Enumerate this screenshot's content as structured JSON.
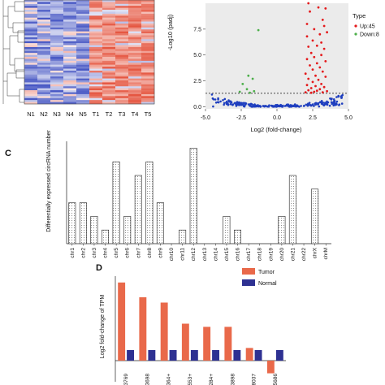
{
  "chart_data": [
    {
      "type": "heatmap",
      "x_labels": [
        "N1",
        "N2",
        "N3",
        "N4",
        "N5",
        "T1",
        "T2",
        "T3",
        "T4",
        "T5"
      ],
      "row_count": 53,
      "colors": {
        "low": "#3b4cc0",
        "mid": "#ffffff",
        "high": "#e34a33"
      }
    },
    {
      "type": "scatter",
      "xlabel": "Log2 (fold-change)",
      "ylabel": "-Log10 (padj)",
      "xlim": [
        -5,
        5
      ],
      "ylim": [
        -0.2,
        10
      ],
      "xticks": [
        "-5.0",
        "-2.5",
        "0.0",
        "2.5",
        "5.0"
      ],
      "yticks": [
        "0.0",
        "2.5",
        "5.0",
        "7.5"
      ],
      "threshold_y": 1.3,
      "legend_title": "Type",
      "series": [
        {
          "name": "Up:45",
          "color": "#e41a1c",
          "points": [
            [
              2.2,
              10.0
            ],
            [
              2.9,
              9.6
            ],
            [
              3.4,
              9.5
            ],
            [
              2.3,
              9.2
            ],
            [
              3.2,
              8.4
            ],
            [
              2.1,
              8.0
            ],
            [
              3.3,
              7.8
            ],
            [
              2.6,
              7.5
            ],
            [
              3.5,
              7.2
            ],
            [
              3.0,
              7.0
            ],
            [
              2.1,
              6.8
            ],
            [
              2.5,
              6.4
            ],
            [
              3.1,
              6.2
            ],
            [
              2.8,
              5.9
            ],
            [
              2.2,
              5.8
            ],
            [
              3.3,
              5.6
            ],
            [
              2.4,
              5.2
            ],
            [
              3.1,
              5.0
            ],
            [
              2.6,
              4.8
            ],
            [
              2.1,
              4.6
            ],
            [
              3.4,
              4.4
            ],
            [
              2.8,
              4.2
            ],
            [
              2.3,
              4.0
            ],
            [
              3.0,
              3.8
            ],
            [
              2.5,
              3.6
            ],
            [
              3.2,
              3.4
            ],
            [
              2.0,
              3.2
            ],
            [
              2.7,
              3.0
            ],
            [
              3.4,
              2.9
            ],
            [
              2.2,
              2.7
            ],
            [
              2.9,
              2.6
            ],
            [
              2.5,
              2.4
            ],
            [
              3.1,
              2.2
            ],
            [
              2.1,
              2.1
            ],
            [
              2.7,
              2.0
            ],
            [
              3.3,
              1.9
            ],
            [
              2.4,
              1.8
            ],
            [
              3.0,
              1.7
            ],
            [
              2.2,
              1.6
            ],
            [
              2.8,
              1.55
            ],
            [
              3.5,
              1.5
            ],
            [
              2.6,
              1.45
            ],
            [
              2.0,
              1.4
            ],
            [
              3.2,
              1.4
            ],
            [
              2.4,
              1.35
            ]
          ]
        },
        {
          "name": "Down:8",
          "color": "#4daf4a",
          "points": [
            [
              -1.3,
              7.4
            ],
            [
              -2.0,
              3.0
            ],
            [
              -2.4,
              2.2
            ],
            [
              -1.7,
              2.7
            ],
            [
              -2.1,
              1.7
            ],
            [
              -1.6,
              1.5
            ],
            [
              -2.6,
              1.45
            ],
            [
              -1.9,
              1.35
            ]
          ]
        }
      ]
    },
    {
      "type": "bar",
      "ylabel": "Differentially expressed circRNA number",
      "categories": [
        "chr1",
        "chr2",
        "chr3",
        "chr4",
        "chr5",
        "chr6",
        "chr7",
        "chr8",
        "chr9",
        "chr10",
        "chr11",
        "chr12",
        "chr13",
        "chr14",
        "chr15",
        "chr16",
        "chr17",
        "chr18",
        "chr19",
        "chr20",
        "chr21",
        "chr22",
        "chrX",
        "chrM"
      ],
      "values": [
        3,
        3,
        2,
        1,
        6,
        2,
        5,
        6,
        3,
        0,
        1,
        7,
        0,
        0,
        2,
        1,
        0,
        0,
        0,
        2,
        5,
        0,
        4,
        0
      ],
      "ylim": [
        0,
        7.5
      ]
    },
    {
      "type": "bar",
      "ylabel": "Log2 fold-change of TPM",
      "categories": [
        "3769",
        "3698",
        "7364+",
        "6553+",
        "3284+",
        "3898",
        "8037",
        "5686"
      ],
      "series": [
        {
          "name": "Tumor",
          "color": "#e9694a",
          "values": [
            7.4,
            6.0,
            5.5,
            3.5,
            3.2,
            3.2,
            1.2,
            -1.2
          ]
        },
        {
          "name": "Normal",
          "color": "#2e3192",
          "values": [
            1.0,
            1.0,
            1.0,
            1.0,
            1.0,
            1.0,
            1.0,
            1.0
          ]
        }
      ],
      "ylim": [
        -2,
        8
      ]
    }
  ],
  "labels": {
    "panel_c": "C",
    "panel_d": "D"
  }
}
